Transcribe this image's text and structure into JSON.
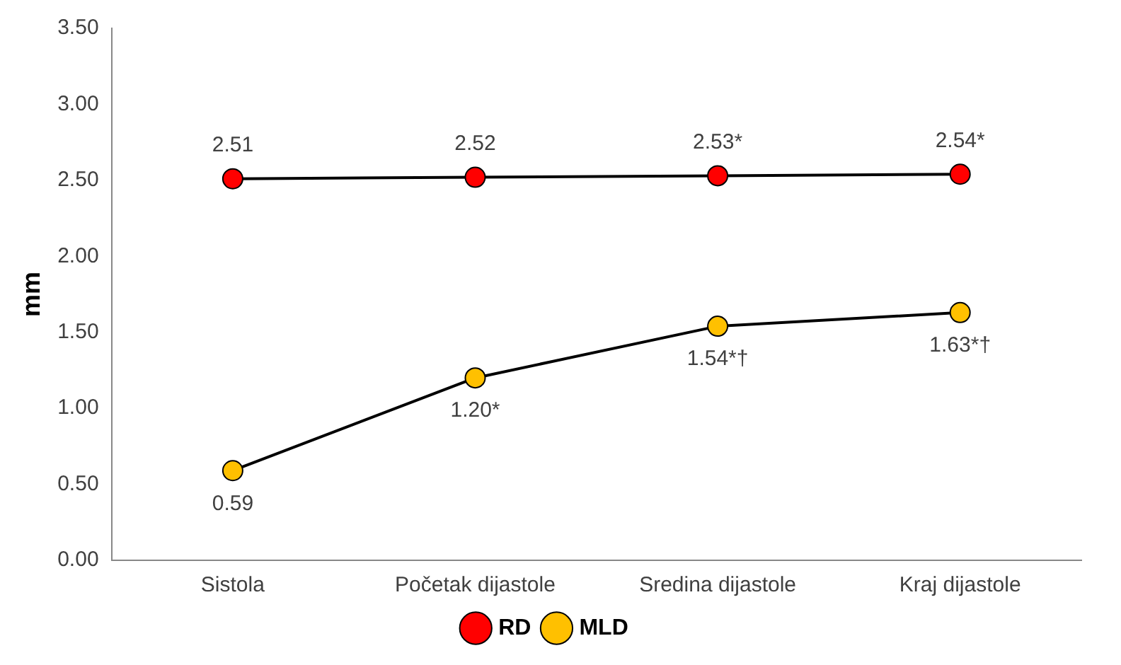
{
  "chart_data": {
    "type": "line",
    "ylabel": "mm",
    "categories": [
      "Sistola",
      "Početak dijastole",
      "Sredina dijastole",
      "Kraj dijastole"
    ],
    "series": [
      {
        "name": "RD",
        "color": "#ff0000",
        "values": [
          2.51,
          2.52,
          2.53,
          2.54
        ],
        "value_labels": [
          "2.51",
          "2.52",
          "2.53*",
          "2.54*"
        ]
      },
      {
        "name": "MLD",
        "color": "#ffc000",
        "values": [
          0.59,
          1.2,
          1.54,
          1.63
        ],
        "value_labels": [
          "0.59",
          "1.20*",
          "1.54*†",
          "1.63*†"
        ]
      }
    ],
    "ylim": [
      0,
      3.5
    ],
    "yticks": [
      {
        "value": 0,
        "label": "0.00"
      },
      {
        "value": 0.5,
        "label": "0.50"
      },
      {
        "value": 1,
        "label": "1.00"
      },
      {
        "value": 1.5,
        "label": "1.50"
      },
      {
        "value": 2,
        "label": "2.00"
      },
      {
        "value": 2.5,
        "label": "2.50"
      },
      {
        "value": 3,
        "label": "3.00"
      },
      {
        "value": 3.5,
        "label": "3.50"
      }
    ],
    "grid": false,
    "legend": "bottom",
    "marker": "circle",
    "line_style": "solid"
  }
}
